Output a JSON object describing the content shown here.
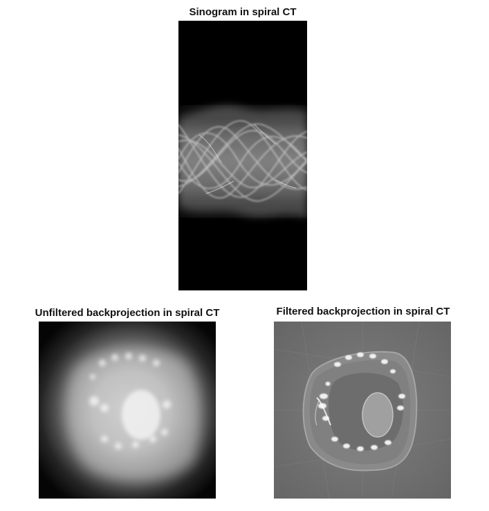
{
  "figures": [
    {
      "title": "Sinogram in spiral CT"
    },
    {
      "title": "Unfiltered backprojection in spiral CT"
    },
    {
      "title": "Filtered backprojection in spiral CT"
    }
  ],
  "colors": {
    "background": "#ffffff",
    "title_text": "#111111",
    "image_black": "#000000",
    "filtered_gray": "#6a6a6a"
  }
}
